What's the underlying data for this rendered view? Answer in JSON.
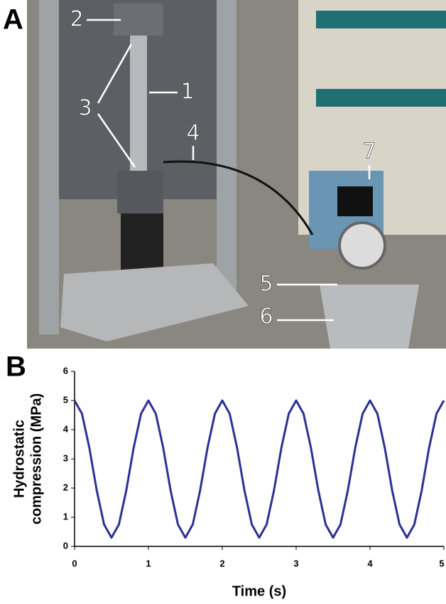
{
  "figure": {
    "panel_labels": [
      "A",
      "B"
    ],
    "photo_callouts": [
      "1",
      "2",
      "3",
      "4",
      "5",
      "6",
      "7"
    ]
  },
  "chart_data": {
    "type": "line",
    "xlabel": "Time (s)",
    "ylabel": [
      "Hydrostatic",
      "compression (MPa)"
    ],
    "x": [
      0,
      0.1,
      0.2,
      0.3,
      0.4,
      0.5,
      0.6,
      0.7,
      0.8,
      0.9,
      1,
      1.1,
      1.2,
      1.3,
      1.4,
      1.5,
      1.6,
      1.7,
      1.8,
      1.9,
      2,
      2.1,
      2.2,
      2.3,
      2.4,
      2.5,
      2.6,
      2.7,
      2.8,
      2.9,
      3,
      3.1,
      3.2,
      3.3,
      3.4,
      3.5,
      3.6,
      3.7,
      3.8,
      3.9,
      4,
      4.1,
      4.2,
      4.3,
      4.4,
      4.5,
      4.6,
      4.7,
      4.8,
      4.9,
      5
    ],
    "values": [
      5,
      4.55,
      3.38,
      1.92,
      0.75,
      0.3,
      0.75,
      1.92,
      3.38,
      4.55,
      5,
      4.55,
      3.38,
      1.92,
      0.75,
      0.3,
      0.75,
      1.92,
      3.38,
      4.55,
      5,
      4.55,
      3.38,
      1.92,
      0.75,
      0.3,
      0.75,
      1.92,
      3.38,
      4.55,
      5,
      4.55,
      3.38,
      1.92,
      0.75,
      0.3,
      0.75,
      1.92,
      3.38,
      4.55,
      5,
      4.55,
      3.38,
      1.92,
      0.75,
      0.3,
      0.75,
      1.92,
      3.38,
      4.55,
      5
    ],
    "color": "#2e3192",
    "xlim": [
      0,
      5
    ],
    "ylim": [
      0,
      6
    ],
    "xticks": [
      0,
      1,
      2,
      3,
      4,
      5
    ],
    "yticks": [
      0,
      1,
      2,
      3,
      4,
      5,
      6
    ],
    "grid": false
  }
}
